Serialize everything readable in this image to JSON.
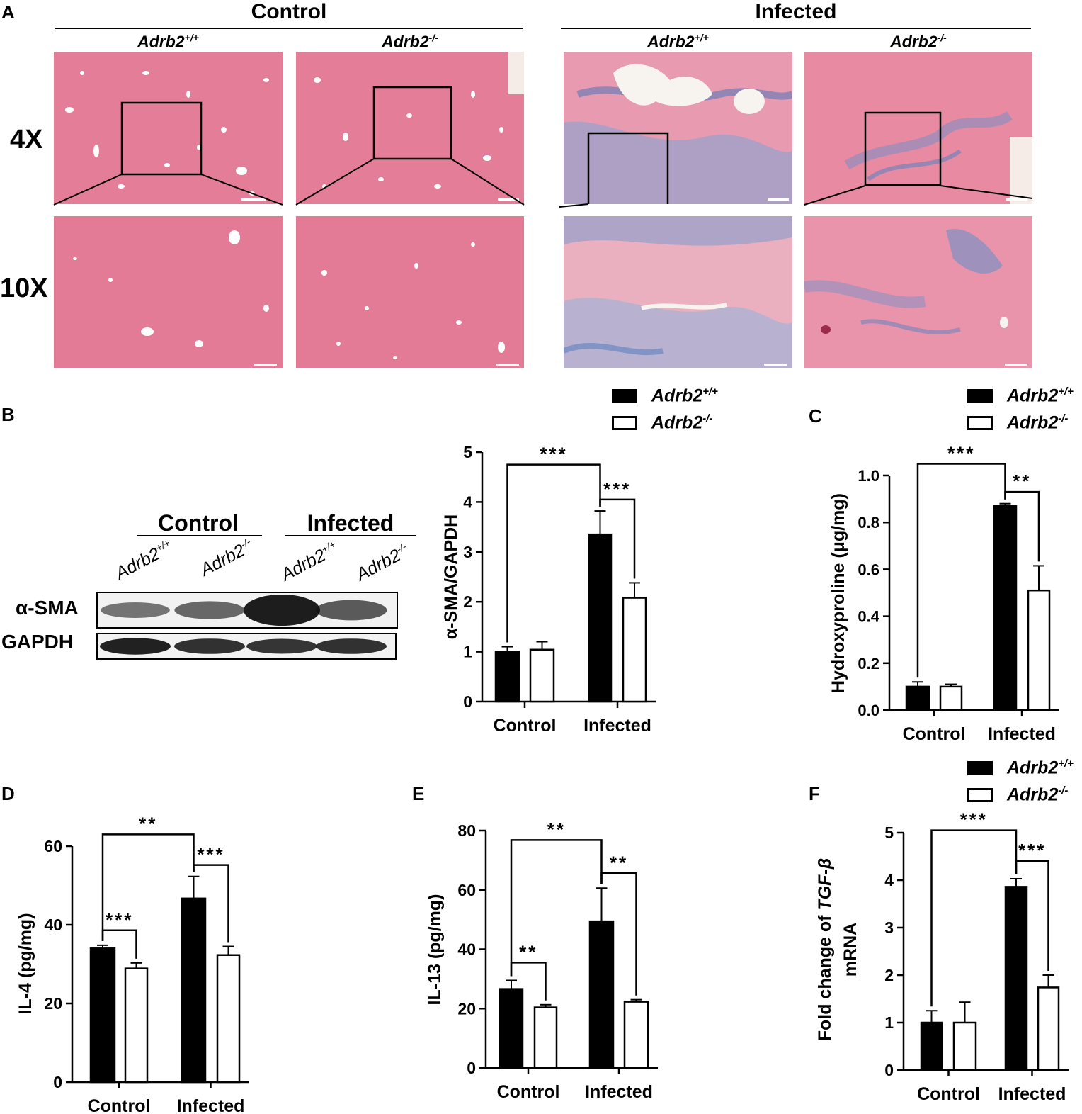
{
  "panel_A": {
    "letter": "A",
    "groups": [
      "Control",
      "Infected"
    ],
    "genotypes": [
      {
        "base": "Adrb2",
        "sup": "+/+"
      },
      {
        "base": "Adrb2",
        "sup": "-/-"
      },
      {
        "base": "Adrb2",
        "sup": "+/+"
      },
      {
        "base": "Adrb2",
        "sup": "-/-"
      }
    ],
    "magnifications": [
      "4X",
      "10X"
    ],
    "stain_colors": {
      "collagen": "#4a7fc0",
      "tissue": "#e2738f",
      "background": "#eaa2b4"
    }
  },
  "panel_B": {
    "letter": "B",
    "blot": {
      "groups": [
        "Control",
        "Infected"
      ],
      "lanes": [
        {
          "base": "Adrb2",
          "sup": "+/+"
        },
        {
          "base": "Adrb2",
          "sup": "-/-"
        },
        {
          "base": "Adrb2",
          "sup": "+/+"
        },
        {
          "base": "Adrb2",
          "sup": "-/-"
        }
      ],
      "rows": [
        "α-SMA",
        "GAPDH"
      ],
      "band_intensity": {
        "α-SMA": [
          0.35,
          0.45,
          1.0,
          0.55
        ],
        "GAPDH": [
          0.95,
          0.8,
          0.75,
          0.8
        ]
      }
    }
  },
  "panel_C": {
    "letter": "C"
  },
  "panel_D": {
    "letter": "D"
  },
  "panel_E": {
    "letter": "E"
  },
  "panel_F": {
    "letter": "F"
  },
  "legend": {
    "entries": [
      {
        "base": "Adrb2",
        "sup": "+/+",
        "fill": "#000000"
      },
      {
        "base": "Adrb2",
        "sup": "-/-",
        "fill": "#ffffff"
      }
    ]
  },
  "chart_data": [
    {
      "id": "B",
      "type": "bar",
      "ylabel": "α-SMA/GAPDH",
      "xlabel": "",
      "categories": [
        "Control",
        "Infected"
      ],
      "ylim": [
        0,
        5
      ],
      "yticks": [
        "0",
        "1",
        "2",
        "3",
        "4",
        "5"
      ],
      "series": [
        {
          "name": "Adrb2+/+",
          "values": [
            1.0,
            3.35
          ],
          "errors": [
            0.1,
            0.47
          ]
        },
        {
          "name": "Adrb2-/-",
          "values": [
            1.04,
            2.08
          ],
          "errors": [
            0.16,
            0.3
          ]
        }
      ],
      "significance": [
        {
          "label": "***",
          "from": [
            0,
            0
          ],
          "to": [
            1,
            0
          ],
          "y": 4.75
        },
        {
          "label": "***",
          "from": [
            1,
            0
          ],
          "to": [
            1,
            1
          ],
          "y": 4.05
        }
      ]
    },
    {
      "id": "C",
      "type": "bar",
      "ylabel": "Hydroxyproline (μg/mg)",
      "xlabel": "",
      "categories": [
        "Control",
        "Infected"
      ],
      "ylim": [
        0,
        1.0
      ],
      "yticks": [
        "0.0",
        "0.2",
        "0.4",
        "0.6",
        "0.8",
        "1.0"
      ],
      "series": [
        {
          "name": "Adrb2+/+",
          "values": [
            0.1,
            0.87
          ],
          "errors": [
            0.02,
            0.01
          ]
        },
        {
          "name": "Adrb2-/-",
          "values": [
            0.1,
            0.51
          ],
          "errors": [
            0.01,
            0.105
          ]
        }
      ],
      "significance": [
        {
          "label": "***",
          "from": [
            0,
            0
          ],
          "to": [
            1,
            0
          ],
          "y": 1.05
        },
        {
          "label": "**",
          "from": [
            1,
            0
          ],
          "to": [
            1,
            1
          ],
          "y": 0.93
        }
      ]
    },
    {
      "id": "D",
      "type": "bar",
      "ylabel": "IL-4 (pg/mg)",
      "xlabel": "",
      "categories": [
        "Control",
        "Infected"
      ],
      "ylim": [
        0,
        60
      ],
      "yticks": [
        "0",
        "20",
        "40",
        "60"
      ],
      "series": [
        {
          "name": "Adrb2+/+",
          "values": [
            34.0,
            46.7
          ],
          "errors": [
            0.8,
            5.6
          ]
        },
        {
          "name": "Adrb2-/-",
          "values": [
            28.9,
            32.3
          ],
          "errors": [
            1.4,
            2.2
          ]
        }
      ],
      "significance": [
        {
          "label": "**",
          "from": [
            0,
            0
          ],
          "to": [
            1,
            0
          ],
          "y": 63.0
        },
        {
          "label": "***",
          "from": [
            1,
            0
          ],
          "to": [
            1,
            1
          ],
          "y": 55.2
        },
        {
          "label": "***",
          "from": [
            0,
            0
          ],
          "to": [
            0,
            1
          ],
          "y": 38.6
        }
      ]
    },
    {
      "id": "E",
      "type": "bar",
      "ylabel": "IL-13 (pg/mg)",
      "xlabel": "",
      "categories": [
        "Control",
        "Infected"
      ],
      "ylim": [
        0,
        80
      ],
      "yticks": [
        "0",
        "20",
        "40",
        "60",
        "80"
      ],
      "series": [
        {
          "name": "Adrb2+/+",
          "values": [
            26.6,
            49.4
          ],
          "errors": [
            2.9,
            11.2
          ]
        },
        {
          "name": "Adrb2-/-",
          "values": [
            20.4,
            22.3
          ],
          "errors": [
            0.9,
            0.7
          ]
        }
      ],
      "significance": [
        {
          "label": "**",
          "from": [
            0,
            0
          ],
          "to": [
            1,
            0
          ],
          "y": 76.8
        },
        {
          "label": "**",
          "from": [
            1,
            0
          ],
          "to": [
            1,
            1
          ],
          "y": 65.6
        },
        {
          "label": "**",
          "from": [
            0,
            0
          ],
          "to": [
            0,
            1
          ],
          "y": 35.5
        }
      ]
    },
    {
      "id": "F",
      "type": "bar",
      "ylabel": "Fold change of TGF-β mRNA",
      "xlabel": "",
      "categories": [
        "Control",
        "Infected"
      ],
      "ylim": [
        0,
        5
      ],
      "yticks": [
        "0",
        "1",
        "2",
        "3",
        "4",
        "5"
      ],
      "series": [
        {
          "name": "Adrb2+/+",
          "values": [
            1.0,
            3.86
          ],
          "errors": [
            0.25,
            0.17
          ]
        },
        {
          "name": "Adrb2-/-",
          "values": [
            1.0,
            1.74
          ],
          "errors": [
            0.43,
            0.26
          ]
        }
      ],
      "significance": [
        {
          "label": "***",
          "from": [
            0,
            0
          ],
          "to": [
            1,
            0
          ],
          "y": 5.05
        },
        {
          "label": "***",
          "from": [
            1,
            0
          ],
          "to": [
            1,
            1
          ],
          "y": 4.4
        }
      ]
    }
  ]
}
